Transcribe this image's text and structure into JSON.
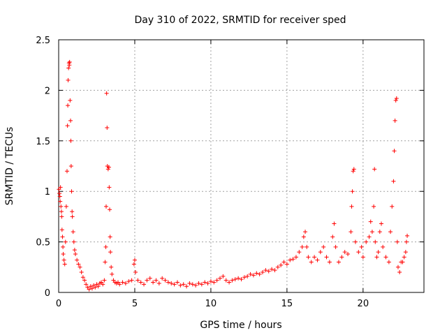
{
  "chart_data": {
    "type": "scatter",
    "title": "Day 310 of 2022, SRMTID for receiver sped",
    "xlabel": "GPS time / hours",
    "ylabel": "SRMTID / TECUs",
    "xlim": [
      0,
      24
    ],
    "ylim": [
      0,
      2.5
    ],
    "x_ticks": [
      0,
      5,
      10,
      15,
      20
    ],
    "x_tick_labels": [
      "0",
      "5",
      "10",
      "15",
      "20"
    ],
    "y_ticks": [
      0,
      0.5,
      1,
      1.5,
      2,
      2.5
    ],
    "y_tick_labels": [
      "0",
      "0.5",
      "1",
      "1.5",
      "2",
      "2.5"
    ],
    "grid": true,
    "marker": "+",
    "series": [
      {
        "name": "SRMTID",
        "color": "#ff0000",
        "points": [
          [
            0.02,
            1.02
          ],
          [
            0.05,
            0.98
          ],
          [
            0.08,
            0.95
          ],
          [
            0.1,
            0.9
          ],
          [
            0.12,
            1.04
          ],
          [
            0.15,
            0.85
          ],
          [
            0.18,
            0.8
          ],
          [
            0.2,
            0.75
          ],
          [
            0.22,
            0.62
          ],
          [
            0.25,
            0.55
          ],
          [
            0.28,
            0.45
          ],
          [
            0.3,
            0.38
          ],
          [
            0.35,
            0.32
          ],
          [
            0.4,
            0.28
          ],
          [
            0.45,
            0.5
          ],
          [
            0.5,
            0.85
          ],
          [
            0.55,
            1.2
          ],
          [
            0.58,
            1.65
          ],
          [
            0.6,
            1.85
          ],
          [
            0.62,
            2.1
          ],
          [
            0.65,
            2.22
          ],
          [
            0.68,
            2.27
          ],
          [
            0.7,
            2.25
          ],
          [
            0.72,
            2.28
          ],
          [
            0.75,
            1.9
          ],
          [
            0.78,
            1.7
          ],
          [
            0.8,
            1.5
          ],
          [
            0.82,
            1.25
          ],
          [
            0.85,
            1.0
          ],
          [
            0.88,
            0.8
          ],
          [
            0.9,
            0.75
          ],
          [
            0.95,
            0.6
          ],
          [
            1.0,
            0.5
          ],
          [
            1.05,
            0.42
          ],
          [
            1.1,
            0.38
          ],
          [
            1.2,
            0.32
          ],
          [
            1.3,
            0.28
          ],
          [
            1.4,
            0.25
          ],
          [
            1.5,
            0.2
          ],
          [
            1.6,
            0.15
          ],
          [
            1.7,
            0.12
          ],
          [
            1.8,
            0.08
          ],
          [
            1.9,
            0.05
          ],
          [
            2.0,
            0.03
          ],
          [
            2.1,
            0.06
          ],
          [
            2.2,
            0.04
          ],
          [
            2.3,
            0.07
          ],
          [
            2.4,
            0.05
          ],
          [
            2.5,
            0.08
          ],
          [
            2.6,
            0.06
          ],
          [
            2.7,
            0.09
          ],
          [
            2.8,
            0.1
          ],
          [
            2.9,
            0.08
          ],
          [
            3.0,
            0.12
          ],
          [
            3.05,
            0.3
          ],
          [
            3.1,
            0.45
          ],
          [
            3.12,
            0.85
          ],
          [
            3.15,
            1.97
          ],
          [
            3.18,
            1.63
          ],
          [
            3.2,
            1.25
          ],
          [
            3.25,
            1.22
          ],
          [
            3.3,
            1.24
          ],
          [
            3.32,
            1.04
          ],
          [
            3.35,
            0.82
          ],
          [
            3.38,
            0.55
          ],
          [
            3.4,
            0.4
          ],
          [
            3.45,
            0.25
          ],
          [
            3.5,
            0.18
          ],
          [
            3.6,
            0.12
          ],
          [
            3.7,
            0.1
          ],
          [
            3.8,
            0.09
          ],
          [
            3.9,
            0.1
          ],
          [
            4.0,
            0.08
          ],
          [
            4.2,
            0.1
          ],
          [
            4.4,
            0.09
          ],
          [
            4.6,
            0.11
          ],
          [
            4.8,
            0.12
          ],
          [
            4.95,
            0.28
          ],
          [
            5.0,
            0.32
          ],
          [
            5.05,
            0.2
          ],
          [
            5.2,
            0.12
          ],
          [
            5.4,
            0.1
          ],
          [
            5.6,
            0.08
          ],
          [
            5.8,
            0.12
          ],
          [
            6.0,
            0.14
          ],
          [
            6.2,
            0.1
          ],
          [
            6.4,
            0.12
          ],
          [
            6.6,
            0.09
          ],
          [
            6.8,
            0.14
          ],
          [
            7.0,
            0.12
          ],
          [
            7.2,
            0.1
          ],
          [
            7.4,
            0.09
          ],
          [
            7.6,
            0.08
          ],
          [
            7.8,
            0.1
          ],
          [
            8.0,
            0.07
          ],
          [
            8.2,
            0.08
          ],
          [
            8.4,
            0.06
          ],
          [
            8.6,
            0.09
          ],
          [
            8.8,
            0.08
          ],
          [
            9.0,
            0.07
          ],
          [
            9.2,
            0.09
          ],
          [
            9.4,
            0.08
          ],
          [
            9.6,
            0.1
          ],
          [
            9.8,
            0.09
          ],
          [
            10.0,
            0.11
          ],
          [
            10.2,
            0.1
          ],
          [
            10.4,
            0.12
          ],
          [
            10.6,
            0.14
          ],
          [
            10.8,
            0.16
          ],
          [
            11.0,
            0.12
          ],
          [
            11.2,
            0.1
          ],
          [
            11.4,
            0.12
          ],
          [
            11.6,
            0.13
          ],
          [
            11.8,
            0.14
          ],
          [
            12.0,
            0.13
          ],
          [
            12.2,
            0.15
          ],
          [
            12.4,
            0.16
          ],
          [
            12.6,
            0.18
          ],
          [
            12.8,
            0.17
          ],
          [
            13.0,
            0.19
          ],
          [
            13.2,
            0.18
          ],
          [
            13.4,
            0.2
          ],
          [
            13.6,
            0.22
          ],
          [
            13.8,
            0.21
          ],
          [
            14.0,
            0.23
          ],
          [
            14.2,
            0.22
          ],
          [
            14.4,
            0.25
          ],
          [
            14.6,
            0.27
          ],
          [
            14.8,
            0.3
          ],
          [
            15.0,
            0.28
          ],
          [
            15.2,
            0.32
          ],
          [
            15.4,
            0.33
          ],
          [
            15.6,
            0.35
          ],
          [
            15.8,
            0.4
          ],
          [
            16.0,
            0.45
          ],
          [
            16.1,
            0.55
          ],
          [
            16.2,
            0.6
          ],
          [
            16.3,
            0.45
          ],
          [
            16.4,
            0.35
          ],
          [
            16.6,
            0.3
          ],
          [
            16.8,
            0.35
          ],
          [
            17.0,
            0.32
          ],
          [
            17.2,
            0.4
          ],
          [
            17.4,
            0.45
          ],
          [
            17.6,
            0.35
          ],
          [
            17.8,
            0.3
          ],
          [
            18.0,
            0.55
          ],
          [
            18.1,
            0.68
          ],
          [
            18.2,
            0.45
          ],
          [
            18.4,
            0.3
          ],
          [
            18.6,
            0.35
          ],
          [
            18.8,
            0.4
          ],
          [
            19.0,
            0.38
          ],
          [
            19.2,
            0.6
          ],
          [
            19.25,
            0.85
          ],
          [
            19.3,
            1.0
          ],
          [
            19.35,
            1.2
          ],
          [
            19.4,
            1.22
          ],
          [
            19.5,
            0.5
          ],
          [
            19.7,
            0.4
          ],
          [
            19.9,
            0.45
          ],
          [
            20.0,
            0.35
          ],
          [
            20.2,
            0.5
          ],
          [
            20.4,
            0.55
          ],
          [
            20.5,
            0.7
          ],
          [
            20.6,
            0.6
          ],
          [
            20.7,
            0.85
          ],
          [
            20.75,
            1.22
          ],
          [
            20.8,
            0.5
          ],
          [
            20.9,
            0.35
          ],
          [
            21.0,
            0.4
          ],
          [
            21.1,
            0.6
          ],
          [
            21.2,
            0.68
          ],
          [
            21.3,
            0.45
          ],
          [
            21.5,
            0.35
          ],
          [
            21.7,
            0.3
          ],
          [
            21.8,
            0.6
          ],
          [
            21.9,
            0.85
          ],
          [
            22.0,
            1.1
          ],
          [
            22.05,
            1.4
          ],
          [
            22.1,
            1.7
          ],
          [
            22.15,
            1.9
          ],
          [
            22.2,
            1.92
          ],
          [
            22.25,
            0.5
          ],
          [
            22.3,
            0.25
          ],
          [
            22.4,
            0.2
          ],
          [
            22.5,
            0.3
          ],
          [
            22.6,
            0.3
          ],
          [
            22.7,
            0.35
          ],
          [
            22.8,
            0.4
          ],
          [
            22.85,
            0.5
          ],
          [
            22.9,
            0.56
          ]
        ]
      }
    ]
  }
}
